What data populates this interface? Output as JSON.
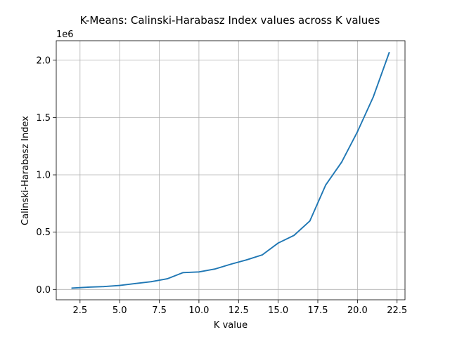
{
  "chart_data": {
    "type": "line",
    "title": "K-Means: Calinski-Harabasz Index values across K values",
    "xlabel": "K value",
    "ylabel": "Calinski-Harabasz Index",
    "y_scale_label": "1e6",
    "xlim": [
      1.0,
      23.0
    ],
    "ylim": [
      -0.09,
      2.17
    ],
    "x_ticks": [
      2.5,
      5.0,
      7.5,
      10.0,
      12.5,
      15.0,
      17.5,
      20.0,
      22.5
    ],
    "x_tick_labels": [
      "2.5",
      "5.0",
      "7.5",
      "10.0",
      "12.5",
      "15.0",
      "17.5",
      "20.0",
      "22.5"
    ],
    "y_ticks": [
      0.0,
      0.5,
      1.0,
      1.5,
      2.0
    ],
    "y_tick_labels": [
      "0.0",
      "0.5",
      "1.0",
      "1.5",
      "2.0"
    ],
    "grid": true,
    "series": [
      {
        "color": "#1f77b4",
        "x": [
          2,
          3,
          4,
          5,
          6,
          7,
          8,
          9,
          10,
          11,
          12,
          13,
          14,
          15,
          16,
          17,
          18,
          19,
          20,
          21,
          22
        ],
        "y": [
          0.012,
          0.02,
          0.025,
          0.035,
          0.052,
          0.068,
          0.093,
          0.147,
          0.153,
          0.178,
          0.22,
          0.258,
          0.302,
          0.405,
          0.472,
          0.598,
          0.912,
          1.11,
          1.376,
          1.68,
          2.065
        ]
      }
    ]
  }
}
